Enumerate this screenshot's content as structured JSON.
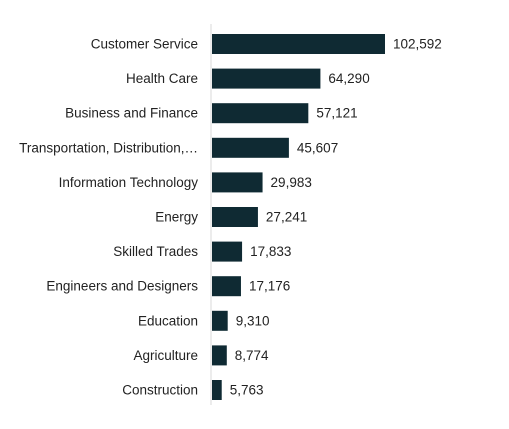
{
  "chart_data": {
    "type": "bar",
    "orientation": "horizontal",
    "categories": [
      "Customer Service",
      "Health Care",
      "Business and Finance",
      "Transportation, Distribution,…",
      "Information Technology",
      "Energy",
      "Skilled Trades",
      "Engineers and Designers",
      "Education",
      "Agriculture",
      "Construction"
    ],
    "values": [
      102592,
      64290,
      57121,
      45607,
      29983,
      27241,
      17833,
      17176,
      9310,
      8774,
      5763
    ],
    "value_labels": [
      "102,592",
      "64,290",
      "57,121",
      "45,607",
      "29,983",
      "27,241",
      "17,833",
      "17,176",
      "9,310",
      "8,774",
      "5,763"
    ],
    "xlim": [
      0,
      102592
    ],
    "grid": false,
    "bar_color": "#0f2a33",
    "axis_color": "#d9d9d9"
  }
}
